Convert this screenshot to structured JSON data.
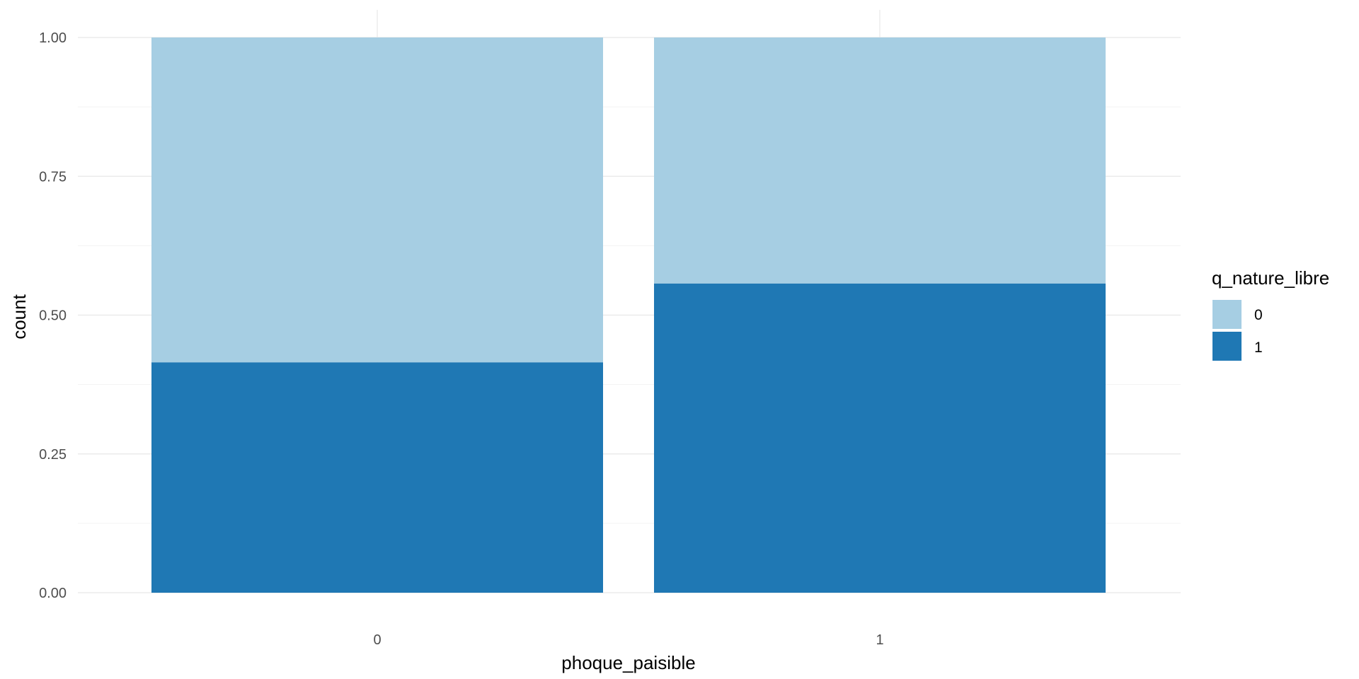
{
  "chart_data": {
    "type": "bar",
    "stacked": true,
    "categories": [
      "0",
      "1"
    ],
    "series": [
      {
        "name": "0",
        "values": [
          0.585,
          0.443
        ]
      },
      {
        "name": "1",
        "values": [
          0.415,
          0.557
        ]
      }
    ],
    "xlabel": "phoque_paisible",
    "ylabel": "count",
    "ylim": [
      0,
      1
    ],
    "yticks": [
      "0.00",
      "0.25",
      "0.50",
      "0.75",
      "1.00"
    ],
    "legend": {
      "title": "q_nature_libre",
      "placement": "right"
    },
    "grid": true,
    "colors": {
      "0": "#a6cee3",
      "1": "#1f78b4"
    }
  }
}
